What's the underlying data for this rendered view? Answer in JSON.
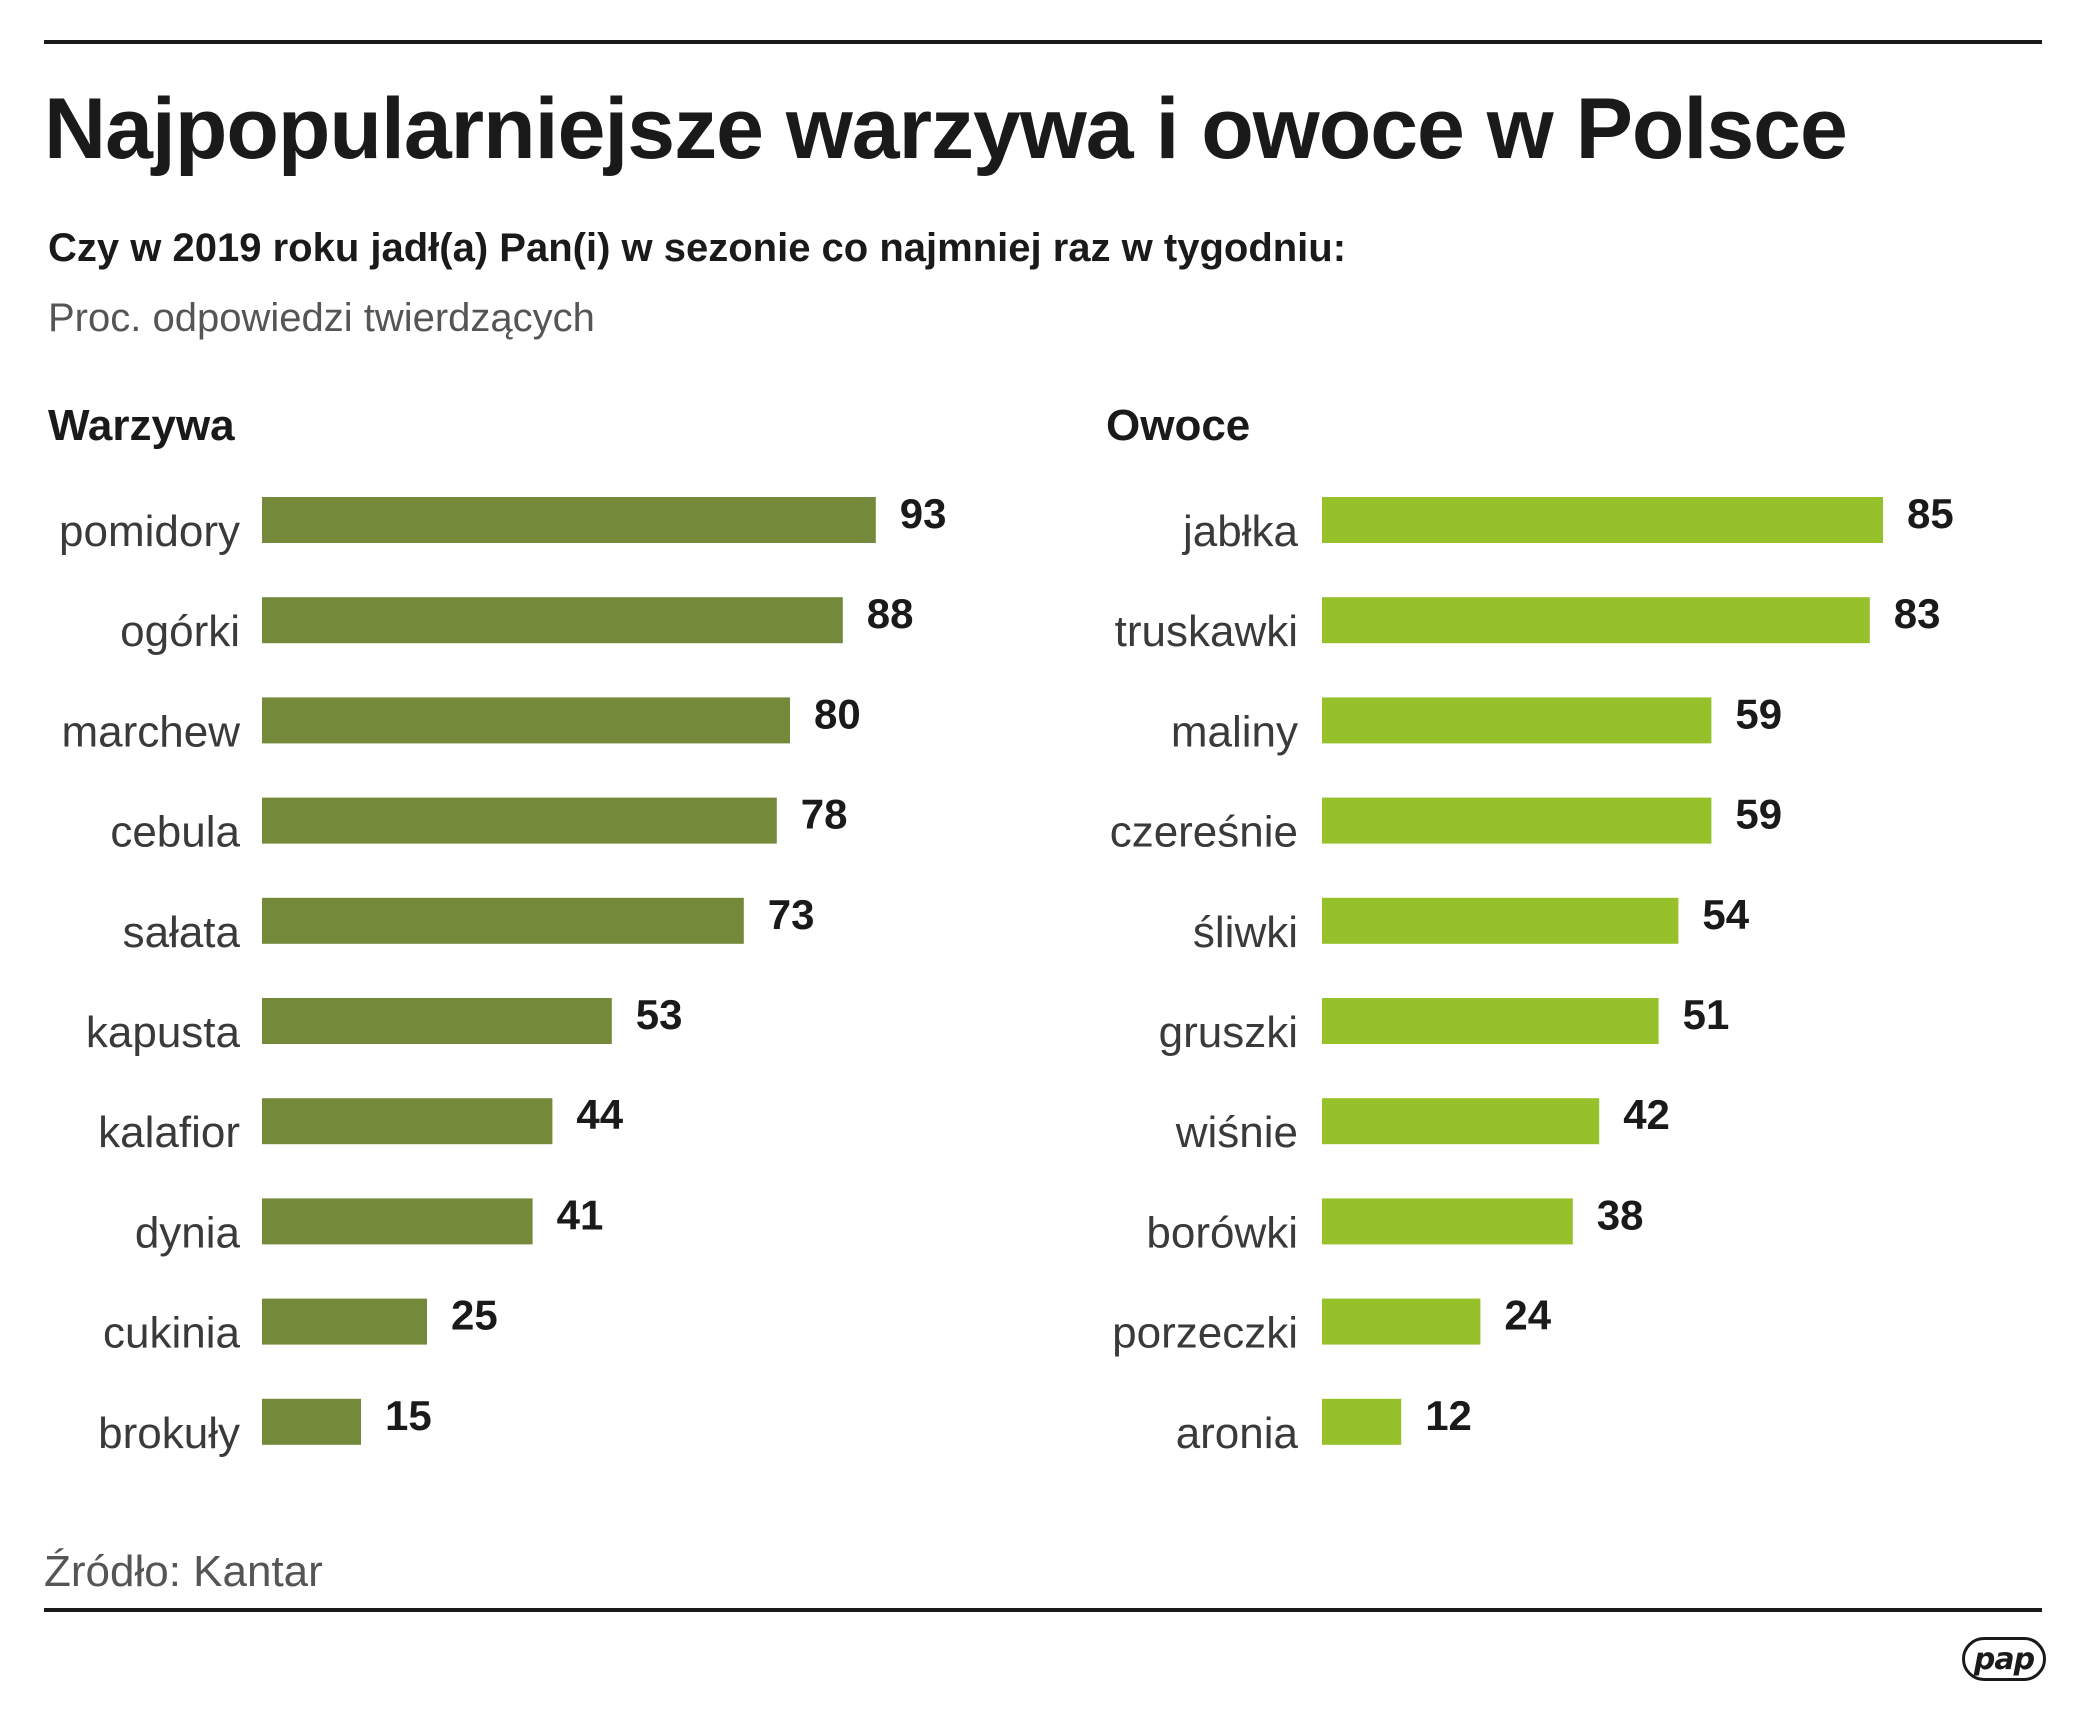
{
  "header": {
    "title": "Najpopularniejsze warzywa i owoce w Polsce",
    "subtitle": "Czy w 2019 roku jadł(a) Pan(i) w sezonie co najmniej raz w tygodniu:",
    "unit": "Proc. odpowiedzi twierdzących"
  },
  "footer": {
    "source": "Źródło: Kantar",
    "logo": "pap"
  },
  "chart_data": [
    {
      "type": "bar",
      "orientation": "horizontal",
      "title": "Warzywa",
      "color": "#75893b",
      "xlim": [
        0,
        100
      ],
      "categories": [
        "pomidory",
        "ogórki",
        "marchew",
        "cebula",
        "sałata",
        "kapusta",
        "kalafior",
        "dynia",
        "cukinia",
        "brokuły"
      ],
      "values": [
        93,
        88,
        80,
        78,
        73,
        53,
        44,
        41,
        25,
        15
      ]
    },
    {
      "type": "bar",
      "orientation": "horizontal",
      "title": "Owoce",
      "color": "#97c12a",
      "xlim": [
        0,
        100
      ],
      "categories": [
        "jabłka",
        "truskawki",
        "maliny",
        "czereśnie",
        "śliwki",
        "gruszki",
        "wiśnie",
        "borówki",
        "porzeczki",
        "aronia"
      ],
      "values": [
        85,
        83,
        59,
        59,
        54,
        51,
        42,
        38,
        24,
        12
      ]
    }
  ]
}
